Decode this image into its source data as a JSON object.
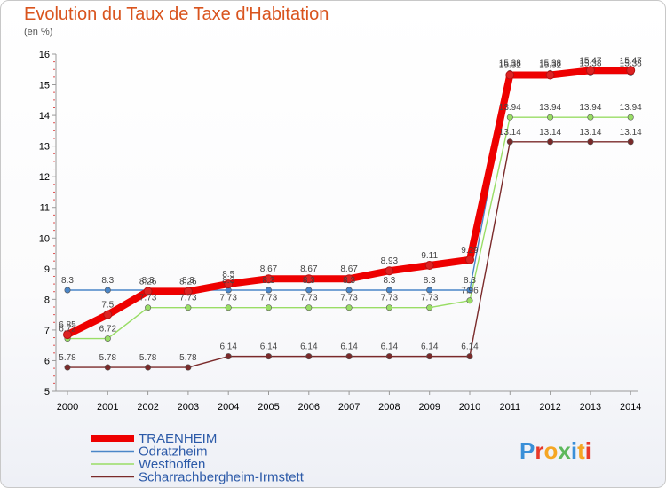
{
  "title": "Evolution du Taux de Taxe d'Habitation",
  "subtitle": "(en %)",
  "brand": "Proxiti",
  "chart_data": {
    "type": "line",
    "x": [
      "2000",
      "2001",
      "2002",
      "2003",
      "2004",
      "2005",
      "2006",
      "2007",
      "2008",
      "2009",
      "2010",
      "2011",
      "2012",
      "2013",
      "2014"
    ],
    "ylim": [
      5,
      16
    ],
    "yticks": [
      "5",
      "6",
      "7",
      "8",
      "9",
      "10",
      "11",
      "12",
      "13",
      "14",
      "15",
      "16"
    ],
    "grid": false,
    "legend_position": "bottom-left",
    "series": [
      {
        "name": "TRAENHEIM",
        "color": "#ee0000",
        "values": [
          6.85,
          7.5,
          8.26,
          8.26,
          8.5,
          8.67,
          8.67,
          8.67,
          8.93,
          9.11,
          9.29,
          15.32,
          15.32,
          15.47,
          15.47
        ],
        "labels": [
          "6.85",
          "7.5",
          "8.26",
          "8.26",
          "8.5",
          "8.67",
          "8.67",
          "8.67",
          "8.93",
          "9.11",
          "9.29",
          "15.32",
          "15.32",
          "15.47",
          "15.47"
        ]
      },
      {
        "name": "Odratzheim",
        "color": "#4a86c8",
        "values": [
          8.3,
          8.3,
          8.3,
          8.3,
          8.3,
          8.3,
          8.3,
          8.3,
          8.3,
          8.3,
          8.3,
          15.38,
          15.38,
          15.38,
          15.38
        ],
        "labels": [
          "8.3",
          "8.3",
          "8.3",
          "8.3",
          "8.3",
          "8.3",
          "8.3",
          "8.3",
          "8.3",
          "8.3",
          "8.3",
          "15.38",
          "15.38",
          "15.38",
          "15.38"
        ]
      },
      {
        "name": "Westhoffen",
        "color": "#99dd66",
        "values": [
          6.72,
          6.72,
          7.73,
          7.73,
          7.73,
          7.73,
          7.73,
          7.73,
          7.73,
          7.73,
          7.96,
          13.94,
          13.94,
          13.94,
          13.94
        ],
        "labels": [
          "6.72",
          "6.72",
          "7.73",
          "7.73",
          "7.73",
          "7.73",
          "7.73",
          "7.73",
          "7.73",
          "7.73",
          "7.96",
          "13.94",
          "13.94",
          "13.94",
          "13.94"
        ]
      },
      {
        "name": "Scharrachbergheim-Irmstett",
        "color": "#7a2a2a",
        "values": [
          5.78,
          5.78,
          5.78,
          5.78,
          6.14,
          6.14,
          6.14,
          6.14,
          6.14,
          6.14,
          6.14,
          13.14,
          13.14,
          13.14,
          13.14
        ],
        "labels": [
          "5.78",
          "5.78",
          "5.78",
          "5.78",
          "6.14",
          "6.14",
          "6.14",
          "6.14",
          "6.14",
          "6.14",
          "6.14",
          "13.14",
          "13.14",
          "13.14",
          "13.14"
        ]
      }
    ]
  }
}
